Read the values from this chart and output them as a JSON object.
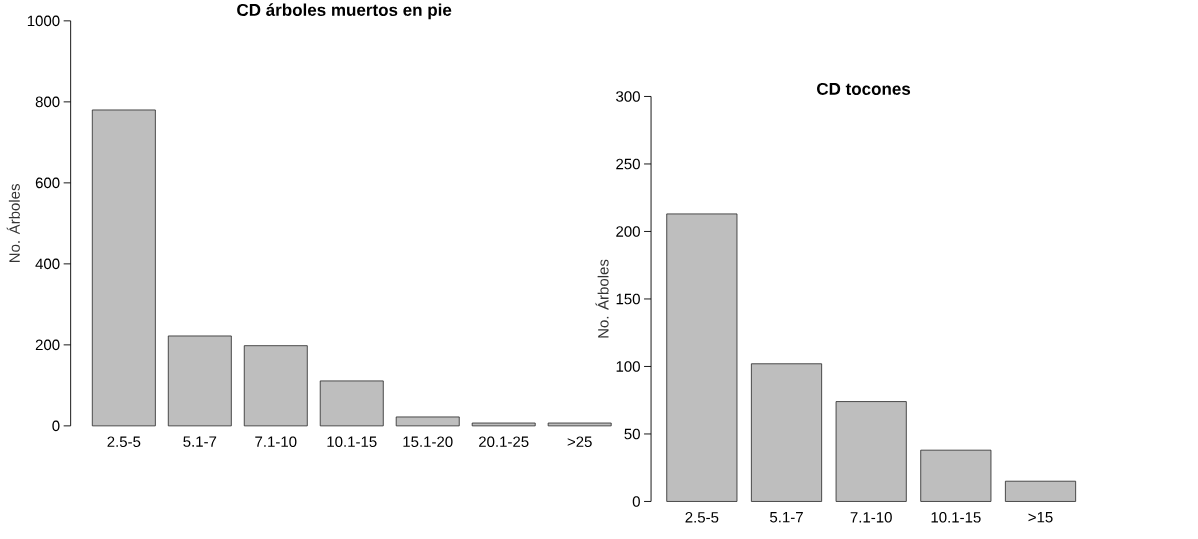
{
  "chart_data": [
    {
      "type": "bar",
      "title": "CD árboles muertos en pie",
      "ylabel": "No. Árboles",
      "categories": [
        "2.5-5",
        "5.1-7",
        "7.1-10",
        "10.1-15",
        "15.1-20",
        "20.1-25",
        ">25"
      ],
      "values": [
        780,
        222,
        198,
        111,
        22,
        7,
        7
      ],
      "color": "#bebebe",
      "ylim": [
        0,
        1000
      ],
      "yticks": [
        0,
        200,
        400,
        600,
        800,
        1000
      ]
    },
    {
      "type": "bar",
      "title": "CD tocones",
      "ylabel": "No. Árboles",
      "categories": [
        "2.5-5",
        "5.1-7",
        "7.1-10",
        "10.1-15",
        ">15"
      ],
      "values": [
        213,
        102,
        74,
        38,
        15
      ],
      "color": "#bebebe",
      "ylim": [
        0,
        300
      ],
      "yticks": [
        0,
        50,
        100,
        150,
        200,
        250,
        300
      ]
    }
  ]
}
